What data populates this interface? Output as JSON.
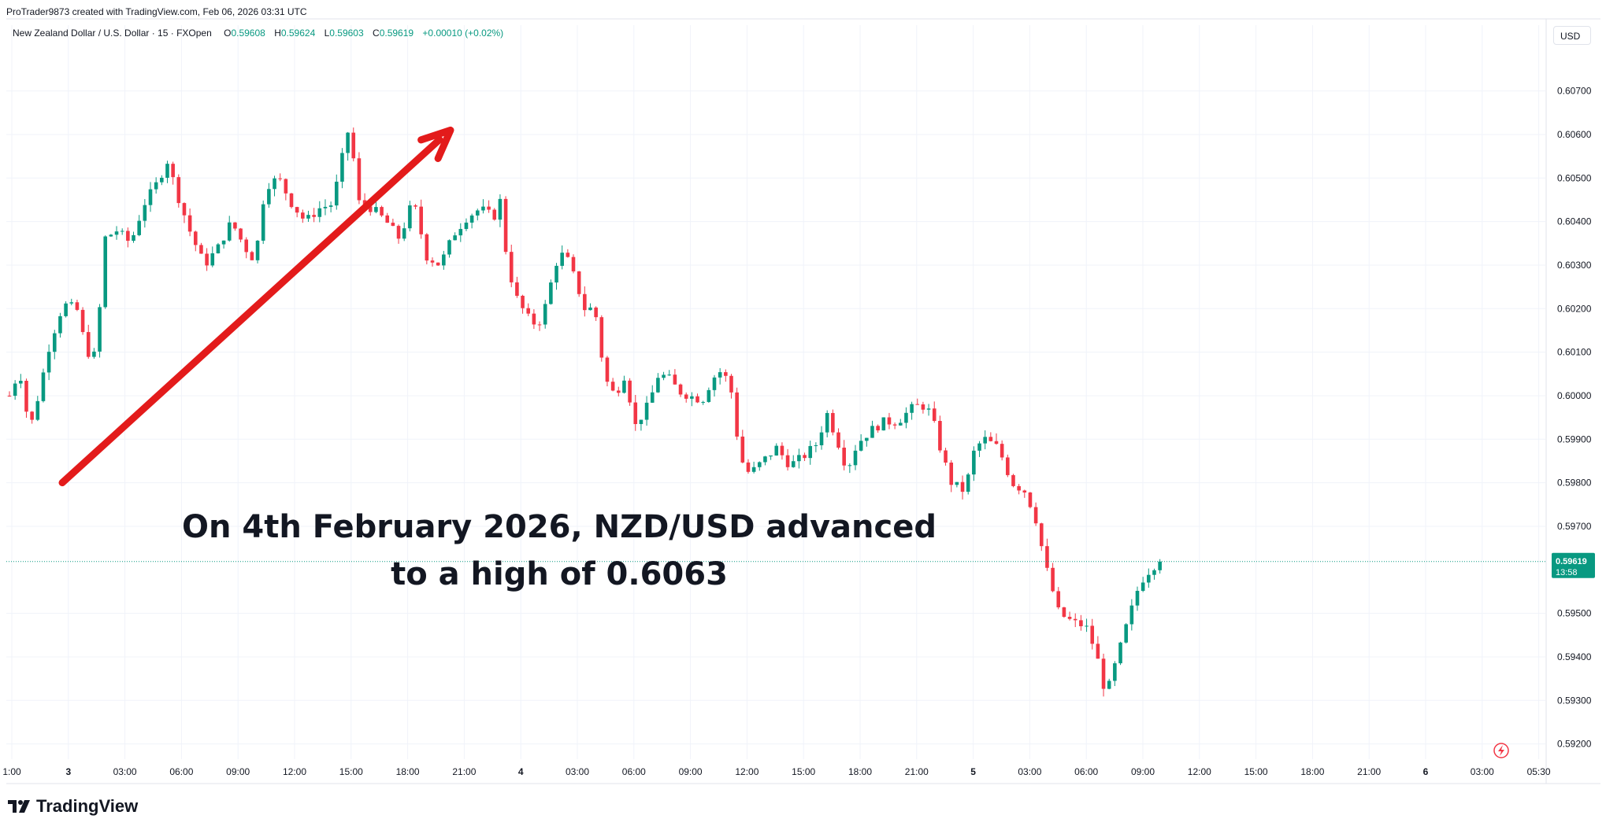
{
  "header": {
    "attribution": "ProTrader9873 created with TradingView.com, Feb 06, 2026 03:31 UTC"
  },
  "legend": {
    "symbol": "New Zealand Dollar / U.S. Dollar · 15 · FXOpen",
    "o_label": "O",
    "o_value": "0.59608",
    "h_label": "H",
    "h_value": "0.59624",
    "l_label": "L",
    "l_value": "0.59603",
    "c_label": "C",
    "c_value": "0.59619",
    "change": "+0.00010 (+0.02%)",
    "up_color": "#089981"
  },
  "currency_button": "USD",
  "annotation": {
    "text": "On 4th February 2026, NZD/USD advanced\nto a high of 0.6063",
    "arrow_color": "#e31b1b",
    "arrow_from": {
      "x": "3 00:00",
      "y": 0.598
    },
    "arrow_to": {
      "x": "3 21:00",
      "y": 0.6061
    }
  },
  "footer": {
    "brand": "TradingView",
    "logo_icon": "tradingview-logo-icon"
  },
  "chart_data": {
    "type": "candlestick",
    "instrument": "NZD/USD",
    "timeframe": "15",
    "y_tick_labels": [
      "0.60700",
      "0.60600",
      "0.60500",
      "0.60400",
      "0.60300",
      "0.60200",
      "0.60100",
      "0.60000",
      "0.59900",
      "0.59800",
      "0.59700",
      "0.59500",
      "0.59400",
      "0.59300",
      "0.59200"
    ],
    "x_tick_labels": [
      "1:00",
      "3",
      "03:00",
      "06:00",
      "09:00",
      "12:00",
      "15:00",
      "18:00",
      "21:00",
      "4",
      "03:00",
      "06:00",
      "09:00",
      "12:00",
      "15:00",
      "18:00",
      "21:00",
      "5",
      "03:00",
      "06:00",
      "09:00",
      "12:00",
      "15:00",
      "18:00",
      "21:00",
      "6",
      "03:00",
      "05:30"
    ],
    "bold_x_tick_labels": [
      "3",
      "4",
      "5",
      "6"
    ],
    "ylim": [
      0.59165,
      0.60815
    ],
    "last_price_label": "0.59619",
    "countdown_label": "13:58",
    "last_price": 0.59619,
    "up_color": "#089981",
    "down_color": "#f23645",
    "grid": true,
    "price_path_points": [
      [
        0,
        0.6
      ],
      [
        1.5,
        0.6006
      ],
      [
        3,
        0.5992
      ],
      [
        4,
        0.5998
      ],
      [
        6,
        0.6012
      ],
      [
        8,
        0.6021
      ],
      [
        10,
        0.602
      ],
      [
        11.5,
        0.601
      ],
      [
        13,
        0.6009
      ],
      [
        14,
        0.6036
      ],
      [
        16,
        0.6038
      ],
      [
        18,
        0.6035
      ],
      [
        20,
        0.6044
      ],
      [
        22,
        0.6049
      ],
      [
        23.5,
        0.6054
      ],
      [
        25,
        0.6046
      ],
      [
        27,
        0.6037
      ],
      [
        29,
        0.603
      ],
      [
        31,
        0.6034
      ],
      [
        33,
        0.604
      ],
      [
        35,
        0.6034
      ],
      [
        36.5,
        0.6031
      ],
      [
        38,
        0.6048
      ],
      [
        40,
        0.605
      ],
      [
        42,
        0.6044
      ],
      [
        44,
        0.604
      ],
      [
        46,
        0.6043
      ],
      [
        48,
        0.6044
      ],
      [
        49.5,
        0.6055
      ],
      [
        50.5,
        0.6062
      ],
      [
        52,
        0.6044
      ],
      [
        54,
        0.6043
      ],
      [
        56,
        0.604
      ],
      [
        58,
        0.6036
      ],
      [
        60,
        0.6045
      ],
      [
        62,
        0.6032
      ],
      [
        64,
        0.603
      ],
      [
        66,
        0.6037
      ],
      [
        68,
        0.6041
      ],
      [
        70,
        0.6043
      ],
      [
        72,
        0.6041
      ],
      [
        73,
        0.6045
      ],
      [
        74,
        0.603
      ],
      [
        75.5,
        0.6022
      ],
      [
        77,
        0.6018
      ],
      [
        78.5,
        0.6016
      ],
      [
        80,
        0.6022
      ],
      [
        81,
        0.603
      ],
      [
        82.5,
        0.6033
      ],
      [
        84,
        0.6027
      ],
      [
        85.5,
        0.602
      ],
      [
        87,
        0.602
      ],
      [
        88.5,
        0.6004
      ],
      [
        90,
        0.6
      ],
      [
        91.5,
        0.6005
      ],
      [
        93,
        0.5993
      ],
      [
        95,
        0.5998
      ],
      [
        96.5,
        0.6005
      ],
      [
        98,
        0.6004
      ],
      [
        99.5,
        0.6001
      ],
      [
        101,
        0.6
      ],
      [
        103,
        0.5999
      ],
      [
        104.5,
        0.6004
      ],
      [
        106,
        0.6006
      ],
      [
        107.5,
        0.6
      ],
      [
        108.5,
        0.5986
      ],
      [
        110,
        0.5982
      ],
      [
        112,
        0.5985
      ],
      [
        114,
        0.5988
      ],
      [
        116,
        0.5984
      ],
      [
        118,
        0.5986
      ],
      [
        120,
        0.5989
      ],
      [
        121.5,
        0.5996
      ],
      [
        123,
        0.599
      ],
      [
        124.5,
        0.5983
      ],
      [
        126,
        0.5989
      ],
      [
        128,
        0.5992
      ],
      [
        130,
        0.5994
      ],
      [
        132,
        0.5994
      ],
      [
        134,
        0.5997
      ],
      [
        135.5,
        0.5998
      ],
      [
        137,
        0.5996
      ],
      [
        138.5,
        0.5987
      ],
      [
        140,
        0.598
      ],
      [
        142,
        0.5978
      ],
      [
        143.5,
        0.5988
      ],
      [
        145,
        0.599
      ],
      [
        147,
        0.5988
      ],
      [
        149,
        0.598
      ],
      [
        151,
        0.5978
      ],
      [
        152.5,
        0.5972
      ],
      [
        154,
        0.5961
      ],
      [
        156,
        0.595
      ],
      [
        158,
        0.5948
      ],
      [
        160,
        0.5947
      ],
      [
        161.5,
        0.5941
      ],
      [
        163,
        0.5931
      ],
      [
        164.5,
        0.5939
      ],
      [
        166,
        0.5947
      ],
      [
        168,
        0.5957
      ],
      [
        170,
        0.5961
      ],
      [
        171,
        0.5961
      ]
    ]
  }
}
